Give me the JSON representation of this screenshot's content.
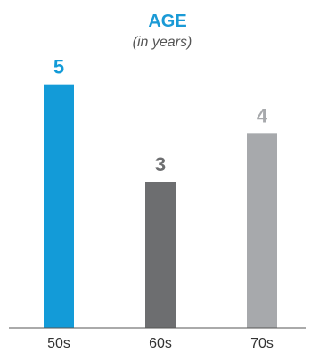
{
  "colors": {
    "title": "#1a9ad6",
    "subtitle": "#555555",
    "axis": "#555555",
    "label_text": "#333333"
  },
  "chart_data": {
    "type": "bar",
    "title": "AGE",
    "subtitle": "(in years)",
    "categories": [
      "50s",
      "60s",
      "70s"
    ],
    "values": [
      5,
      3,
      4
    ],
    "bar_colors": [
      "#139bd8",
      "#6d6e70",
      "#a7a9ac"
    ],
    "label_colors": [
      "#139bd8",
      "#6d6e70",
      "#a7a9ac"
    ],
    "ylim": [
      0,
      6
    ],
    "grid": false,
    "legend": "none",
    "xlabel": "",
    "ylabel": ""
  }
}
